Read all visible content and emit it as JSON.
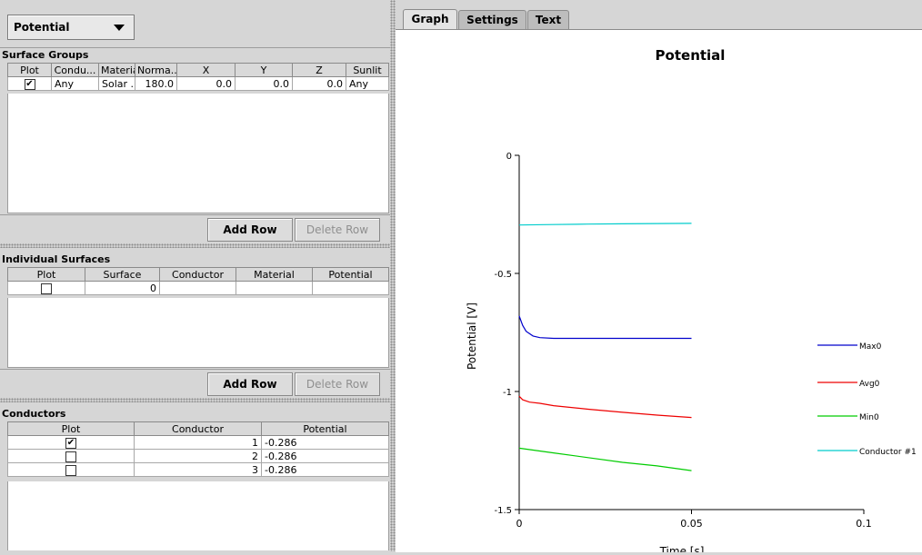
{
  "dropdown": {
    "selected": "Potential"
  },
  "surface_groups": {
    "title": "Surface Groups",
    "columns": [
      "Plot",
      "Condu...",
      "Material",
      "Norma...",
      "X",
      "Y",
      "Z",
      "Sunlit"
    ],
    "rows": [
      {
        "plot": true,
        "conductor": "Any",
        "material": "Solar ...",
        "normal": "180.0",
        "x": "0.0",
        "y": "0.0",
        "z": "0.0",
        "sunlit": "Any"
      }
    ],
    "add_label": "Add Row",
    "delete_label": "Delete Row"
  },
  "individual_surfaces": {
    "title": "Individual Surfaces",
    "columns": [
      "Plot",
      "Surface",
      "Conductor",
      "Material",
      "Potential"
    ],
    "rows": [
      {
        "plot": false,
        "surface": "0",
        "conductor": "",
        "material": "",
        "potential": ""
      }
    ],
    "add_label": "Add Row",
    "delete_label": "Delete Row"
  },
  "conductors": {
    "title": "Conductors",
    "columns": [
      "Plot",
      "Conductor",
      "Potential"
    ],
    "rows": [
      {
        "plot": true,
        "conductor": "1",
        "potential": "-0.286"
      },
      {
        "plot": false,
        "conductor": "2",
        "potential": "-0.286"
      },
      {
        "plot": false,
        "conductor": "3",
        "potential": "-0.286"
      }
    ]
  },
  "tabs": [
    {
      "label": "Graph",
      "active": true
    },
    {
      "label": "Settings",
      "active": false
    },
    {
      "label": "Text",
      "active": false
    }
  ],
  "chart_data": {
    "type": "line",
    "title": "Potential",
    "xlabel": "Time [s]",
    "ylabel": "Potential [V]",
    "xlim": [
      0,
      0.1
    ],
    "ylim": [
      -1.5,
      0
    ],
    "xticks": [
      "0",
      "0.05",
      "0.1"
    ],
    "yticks": [
      "0",
      "-0.5",
      "-1",
      "-1.5"
    ],
    "legend_position": "right",
    "series": [
      {
        "name": "Max0",
        "color": "#0000cc",
        "x": [
          0,
          0.001,
          0.002,
          0.004,
          0.006,
          0.01,
          0.02,
          0.03,
          0.04,
          0.05
        ],
        "y": [
          -0.68,
          -0.72,
          -0.745,
          -0.765,
          -0.772,
          -0.775,
          -0.775,
          -0.775,
          -0.775,
          -0.775
        ]
      },
      {
        "name": "Avg0",
        "color": "#ee0000",
        "x": [
          0,
          0.001,
          0.003,
          0.006,
          0.01,
          0.02,
          0.03,
          0.04,
          0.05
        ],
        "y": [
          -1.02,
          -1.035,
          -1.045,
          -1.05,
          -1.06,
          -1.075,
          -1.088,
          -1.1,
          -1.11
        ]
      },
      {
        "name": "Min0",
        "color": "#00cc00",
        "x": [
          0,
          0.01,
          0.02,
          0.03,
          0.04,
          0.05
        ],
        "y": [
          -1.24,
          -1.26,
          -1.28,
          -1.3,
          -1.315,
          -1.335
        ]
      },
      {
        "name": "Conductor #1",
        "color": "#00cccc",
        "x": [
          0,
          0.01,
          0.02,
          0.03,
          0.04,
          0.05
        ],
        "y": [
          -0.295,
          -0.293,
          -0.291,
          -0.29,
          -0.289,
          -0.288
        ]
      }
    ]
  }
}
